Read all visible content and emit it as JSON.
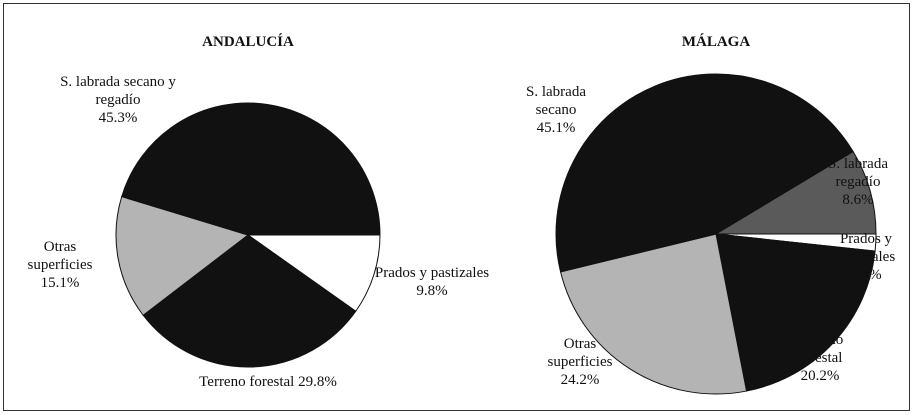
{
  "chart_data": [
    {
      "type": "pie",
      "title": "ANDALUCÍA",
      "categories": [
        "Prados y pastizales",
        "Terreno forestal",
        "Otras superficies",
        "S. labrada secano y regadío"
      ],
      "values": [
        9.8,
        29.8,
        15.1,
        45.3
      ],
      "value_labels": [
        "9.8%",
        "29.8%",
        "15.1%",
        "45.3%"
      ],
      "colors": [
        "#ffffff",
        "#111111",
        "#b4b4b4",
        "#111111"
      ]
    },
    {
      "type": "pie",
      "title": "MÁLAGA",
      "categories": [
        "Prados y pastizales",
        "Terreno forestal",
        "Otras superficies",
        "S. labrada secano",
        "S. labrada regadío"
      ],
      "values": [
        1.7,
        20.2,
        24.2,
        45.1,
        8.6
      ],
      "value_labels": [
        "1.7%",
        "20.2%",
        "24.2%",
        "45.1%",
        "8.6%"
      ],
      "colors": [
        "#ffffff",
        "#111111",
        "#b4b4b4",
        "#111111",
        "#5a5a5a"
      ]
    }
  ]
}
